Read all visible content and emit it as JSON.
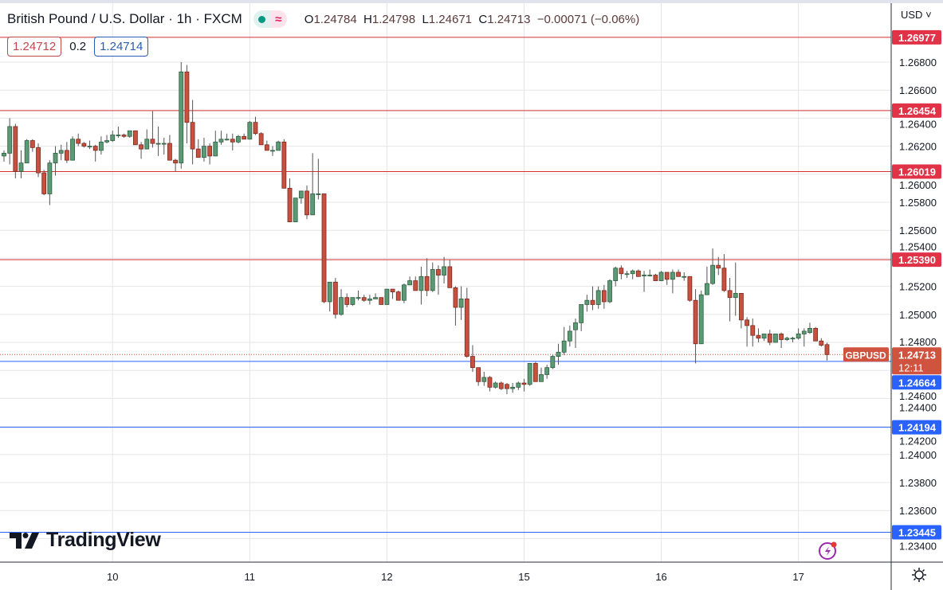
{
  "header": {
    "title": "British Pound / U.S. Dollar · 1h · FXCM",
    "ohlc": {
      "o_label": "O",
      "o": "1.24784",
      "h_label": "H",
      "h": "1.24798",
      "l_label": "L",
      "l": "1.24671",
      "c_label": "C",
      "c": "1.24713",
      "change": "−0.00071 (−0.06%)"
    },
    "sell_price": "1.24712",
    "spread": "0.2",
    "buy_price": "1.24714",
    "currency_menu": "USD",
    "status_icon": "market-open-dot",
    "indicator_icon": "wave-icon"
  },
  "branding": {
    "logo_text": "TradingView"
  },
  "colors": {
    "up": "#5c9a76",
    "down": "#c8503f",
    "resistance": "#d32f2f",
    "support": "#2962ff",
    "grid": "#e6e6ea"
  },
  "chart_data": {
    "type": "candlestick",
    "symbol": "GBPUSD",
    "interval": "1h",
    "ylim": [
      1.233,
      1.271
    ],
    "y_ticks": [
      "1.26800",
      "1.26600",
      "1.26400",
      "1.26200",
      "1.26000",
      "1.25800",
      "1.25600",
      "1.25400",
      "1.25200",
      "1.25000",
      "1.24800",
      "1.24600",
      "1.24400",
      "1.24200",
      "1.24000",
      "1.23800",
      "1.23600",
      "1.23400"
    ],
    "x_labels": [
      {
        "label": "10",
        "index": 19
      },
      {
        "label": "11",
        "index": 43
      },
      {
        "label": "12",
        "index": 67
      },
      {
        "label": "15",
        "index": 91
      },
      {
        "label": "16",
        "index": 115
      },
      {
        "label": "17",
        "index": 139
      }
    ],
    "current_price": {
      "label": "GBPUSD",
      "value": "1.24713",
      "countdown": "12:11"
    },
    "resistance_levels": [
      "1.26977",
      "1.26454",
      "1.26019",
      "1.25390"
    ],
    "support_levels": [
      "1.24664",
      "1.24194",
      "1.23445"
    ],
    "ohlc": [
      [
        1.2613,
        1.2617,
        1.2609,
        1.2615
      ],
      [
        1.2615,
        1.264,
        1.2607,
        1.2634
      ],
      [
        1.2634,
        1.2636,
        1.2597,
        1.2602
      ],
      [
        1.2602,
        1.2617,
        1.2597,
        1.2608
      ],
      [
        1.2608,
        1.2625,
        1.2608,
        1.2624
      ],
      [
        1.2624,
        1.2625,
        1.2616,
        1.2619
      ],
      [
        1.2619,
        1.2622,
        1.2598,
        1.2601
      ],
      [
        1.2601,
        1.2603,
        1.2585,
        1.2586
      ],
      [
        1.2586,
        1.261,
        1.2578,
        1.2608
      ],
      [
        1.2608,
        1.262,
        1.2599,
        1.2615
      ],
      [
        1.2615,
        1.2621,
        1.261,
        1.2617
      ],
      [
        1.2617,
        1.2623,
        1.2608,
        1.261
      ],
      [
        1.261,
        1.2627,
        1.261,
        1.2625
      ],
      [
        1.2625,
        1.2629,
        1.262,
        1.2622
      ],
      [
        1.2622,
        1.2623,
        1.2619,
        1.262
      ],
      [
        1.262,
        1.2624,
        1.2618,
        1.262
      ],
      [
        1.262,
        1.2621,
        1.2609,
        1.2617
      ],
      [
        1.2617,
        1.2627,
        1.2614,
        1.2623
      ],
      [
        1.2623,
        1.2628,
        1.2622,
        1.2624
      ],
      [
        1.2624,
        1.2631,
        1.2623,
        1.2628
      ],
      [
        1.2628,
        1.2634,
        1.2626,
        1.2628
      ],
      [
        1.2628,
        1.2629,
        1.2626,
        1.2627
      ],
      [
        1.2627,
        1.2631,
        1.2626,
        1.2631
      ],
      [
        1.2631,
        1.2631,
        1.2621,
        1.2621
      ],
      [
        1.2621,
        1.2623,
        1.2611,
        1.2618
      ],
      [
        1.2618,
        1.2632,
        1.2618,
        1.2625
      ],
      [
        1.2625,
        1.2645,
        1.2619,
        1.2622
      ],
      [
        1.2622,
        1.2634,
        1.2613,
        1.2622
      ],
      [
        1.2622,
        1.2626,
        1.2614,
        1.2622
      ],
      [
        1.2622,
        1.2628,
        1.261,
        1.261
      ],
      [
        1.261,
        1.2611,
        1.2602,
        1.2608
      ],
      [
        1.2608,
        1.268,
        1.2604,
        1.2673
      ],
      [
        1.2673,
        1.2678,
        1.2622,
        1.2637
      ],
      [
        1.2637,
        1.2653,
        1.2607,
        1.2618
      ],
      [
        1.2618,
        1.2625,
        1.2612,
        1.2612
      ],
      [
        1.2612,
        1.2626,
        1.2609,
        1.262
      ],
      [
        1.262,
        1.2622,
        1.2607,
        1.2613
      ],
      [
        1.2613,
        1.2631,
        1.2613,
        1.2623
      ],
      [
        1.2623,
        1.2631,
        1.2621,
        1.2625
      ],
      [
        1.2625,
        1.2629,
        1.2624,
        1.2625
      ],
      [
        1.2625,
        1.2629,
        1.2617,
        1.2623
      ],
      [
        1.2623,
        1.2628,
        1.2622,
        1.2627
      ],
      [
        1.2627,
        1.2629,
        1.2625,
        1.2625
      ],
      [
        1.2625,
        1.2638,
        1.2625,
        1.2637
      ],
      [
        1.2637,
        1.2641,
        1.2628,
        1.2629
      ],
      [
        1.2629,
        1.263,
        1.2621,
        1.2621
      ],
      [
        1.2621,
        1.2624,
        1.2617,
        1.2617
      ],
      [
        1.2617,
        1.262,
        1.2613,
        1.2617
      ],
      [
        1.2617,
        1.2624,
        1.2617,
        1.2623
      ],
      [
        1.2623,
        1.2625,
        1.259,
        1.259
      ],
      [
        1.259,
        1.2597,
        1.2566,
        1.2566
      ],
      [
        1.2566,
        1.2583,
        1.2566,
        1.2583
      ],
      [
        1.2583,
        1.2588,
        1.2579,
        1.2588
      ],
      [
        1.2588,
        1.2592,
        1.2568,
        1.2571
      ],
      [
        1.2571,
        1.2615,
        1.2571,
        1.2586
      ],
      [
        1.2586,
        1.2611,
        1.2582,
        1.2586
      ],
      [
        1.2586,
        1.2586,
        1.2508,
        1.2509
      ],
      [
        1.2509,
        1.2523,
        1.2502,
        1.2523
      ],
      [
        1.2523,
        1.2526,
        1.2497,
        1.25
      ],
      [
        1.25,
        1.2518,
        1.2499,
        1.2512
      ],
      [
        1.2512,
        1.2515,
        1.2505,
        1.2507
      ],
      [
        1.2507,
        1.2512,
        1.2506,
        1.2512
      ],
      [
        1.2512,
        1.2517,
        1.251,
        1.2512
      ],
      [
        1.2512,
        1.2514,
        1.2509,
        1.251
      ],
      [
        1.251,
        1.2514,
        1.2507,
        1.2511
      ],
      [
        1.2511,
        1.2515,
        1.2511,
        1.2512
      ],
      [
        1.2512,
        1.2512,
        1.2507,
        1.2507
      ],
      [
        1.2507,
        1.2518,
        1.2507,
        1.2518
      ],
      [
        1.2518,
        1.2518,
        1.2511,
        1.2516
      ],
      [
        1.2516,
        1.2517,
        1.251,
        1.251
      ],
      [
        1.251,
        1.2522,
        1.2508,
        1.2521
      ],
      [
        1.2521,
        1.2527,
        1.2521,
        1.2524
      ],
      [
        1.2524,
        1.2527,
        1.2517,
        1.2517
      ],
      [
        1.2517,
        1.2534,
        1.2507,
        1.2527
      ],
      [
        1.2527,
        1.254,
        1.2513,
        1.2517
      ],
      [
        1.2517,
        1.2537,
        1.2516,
        1.2532
      ],
      [
        1.2532,
        1.2535,
        1.2514,
        1.2528
      ],
      [
        1.2528,
        1.2541,
        1.2522,
        1.2534
      ],
      [
        1.2534,
        1.2539,
        1.2519,
        1.2519
      ],
      [
        1.2519,
        1.252,
        1.2492,
        1.2505
      ],
      [
        1.2505,
        1.252,
        1.2496,
        1.2511
      ],
      [
        1.2511,
        1.2519,
        1.2469,
        1.247
      ],
      [
        1.247,
        1.2478,
        1.2459,
        1.2462
      ],
      [
        1.2462,
        1.2462,
        1.2449,
        1.2452
      ],
      [
        1.2452,
        1.2459,
        1.2449,
        1.2455
      ],
      [
        1.2455,
        1.2456,
        1.2445,
        1.2448
      ],
      [
        1.2448,
        1.2452,
        1.2447,
        1.2451
      ],
      [
        1.2451,
        1.2452,
        1.2446,
        1.2447
      ],
      [
        1.245,
        1.2451,
        1.2443,
        1.2447
      ],
      [
        1.2447,
        1.2451,
        1.2444,
        1.2448
      ],
      [
        1.2448,
        1.2452,
        1.2446,
        1.2451
      ],
      [
        1.2451,
        1.2454,
        1.2445,
        1.245
      ],
      [
        1.245,
        1.2465,
        1.2449,
        1.2465
      ],
      [
        1.2465,
        1.2466,
        1.2452,
        1.2452
      ],
      [
        1.2452,
        1.2462,
        1.2452,
        1.2457
      ],
      [
        1.2457,
        1.2464,
        1.2454,
        1.2462
      ],
      [
        1.2462,
        1.2471,
        1.2461,
        1.247
      ],
      [
        1.247,
        1.2479,
        1.2464,
        1.2473
      ],
      [
        1.2473,
        1.2491,
        1.2471,
        1.2481
      ],
      [
        1.2481,
        1.2492,
        1.2477,
        1.2488
      ],
      [
        1.2489,
        1.2497,
        1.2476,
        1.2494
      ],
      [
        1.2494,
        1.2507,
        1.2488,
        1.2507
      ],
      [
        1.2507,
        1.2514,
        1.2502,
        1.251
      ],
      [
        1.251,
        1.252,
        1.2503,
        1.2507
      ],
      [
        1.2507,
        1.252,
        1.2504,
        1.2517
      ],
      [
        1.2517,
        1.2521,
        1.2504,
        1.2509
      ],
      [
        1.2509,
        1.2525,
        1.2508,
        1.2524
      ],
      [
        1.2524,
        1.2534,
        1.252,
        1.2533
      ],
      [
        1.2533,
        1.2535,
        1.2525,
        1.2529
      ],
      [
        1.2529,
        1.2531,
        1.2526,
        1.2529
      ],
      [
        1.2529,
        1.2532,
        1.2525,
        1.2531
      ],
      [
        1.2531,
        1.2532,
        1.2527,
        1.2527
      ],
      [
        1.2528,
        1.2531,
        1.2516,
        1.2528
      ],
      [
        1.2528,
        1.2532,
        1.2527,
        1.2528
      ],
      [
        1.2528,
        1.2529,
        1.2524,
        1.2524
      ],
      [
        1.2524,
        1.2531,
        1.2524,
        1.253
      ],
      [
        1.253,
        1.253,
        1.2521,
        1.2525
      ],
      [
        1.2525,
        1.2532,
        1.2515,
        1.253
      ],
      [
        1.253,
        1.2532,
        1.2527,
        1.2527
      ],
      [
        1.2527,
        1.253,
        1.2524,
        1.2527
      ],
      [
        1.2527,
        1.2527,
        1.2509,
        1.251
      ],
      [
        1.251,
        1.2518,
        1.2465,
        1.2479
      ],
      [
        1.2479,
        1.2517,
        1.2479,
        1.2514
      ],
      [
        1.2514,
        1.2534,
        1.2514,
        1.2522
      ],
      [
        1.2522,
        1.2547,
        1.2521,
        1.2535
      ],
      [
        1.2535,
        1.2541,
        1.2528,
        1.2533
      ],
      [
        1.2533,
        1.2543,
        1.2516,
        1.2517
      ],
      [
        1.2517,
        1.2526,
        1.2495,
        1.2512
      ],
      [
        1.2512,
        1.2537,
        1.2499,
        1.2515
      ],
      [
        1.2515,
        1.2515,
        1.249,
        1.2496
      ],
      [
        1.2496,
        1.2498,
        1.2477,
        1.2492
      ],
      [
        1.2492,
        1.2497,
        1.2477,
        1.2485
      ],
      [
        1.2485,
        1.249,
        1.248,
        1.2483
      ],
      [
        1.2483,
        1.2486,
        1.2481,
        1.2486
      ],
      [
        1.2486,
        1.2489,
        1.2478,
        1.248
      ],
      [
        1.248,
        1.2486,
        1.248,
        1.2486
      ],
      [
        1.2486,
        1.2487,
        1.2476,
        1.2482
      ],
      [
        1.2482,
        1.2484,
        1.2481,
        1.2483
      ],
      [
        1.2483,
        1.2484,
        1.248,
        1.2483
      ],
      [
        1.2483,
        1.249,
        1.2482,
        1.2486
      ],
      [
        1.2486,
        1.249,
        1.2477,
        1.2488
      ],
      [
        1.2487,
        1.2494,
        1.2486,
        1.249
      ],
      [
        1.249,
        1.2491,
        1.2481,
        1.2481
      ],
      [
        1.2481,
        1.2483,
        1.2477,
        1.2478
      ],
      [
        1.24784,
        1.24798,
        1.24671,
        1.24713
      ]
    ]
  }
}
